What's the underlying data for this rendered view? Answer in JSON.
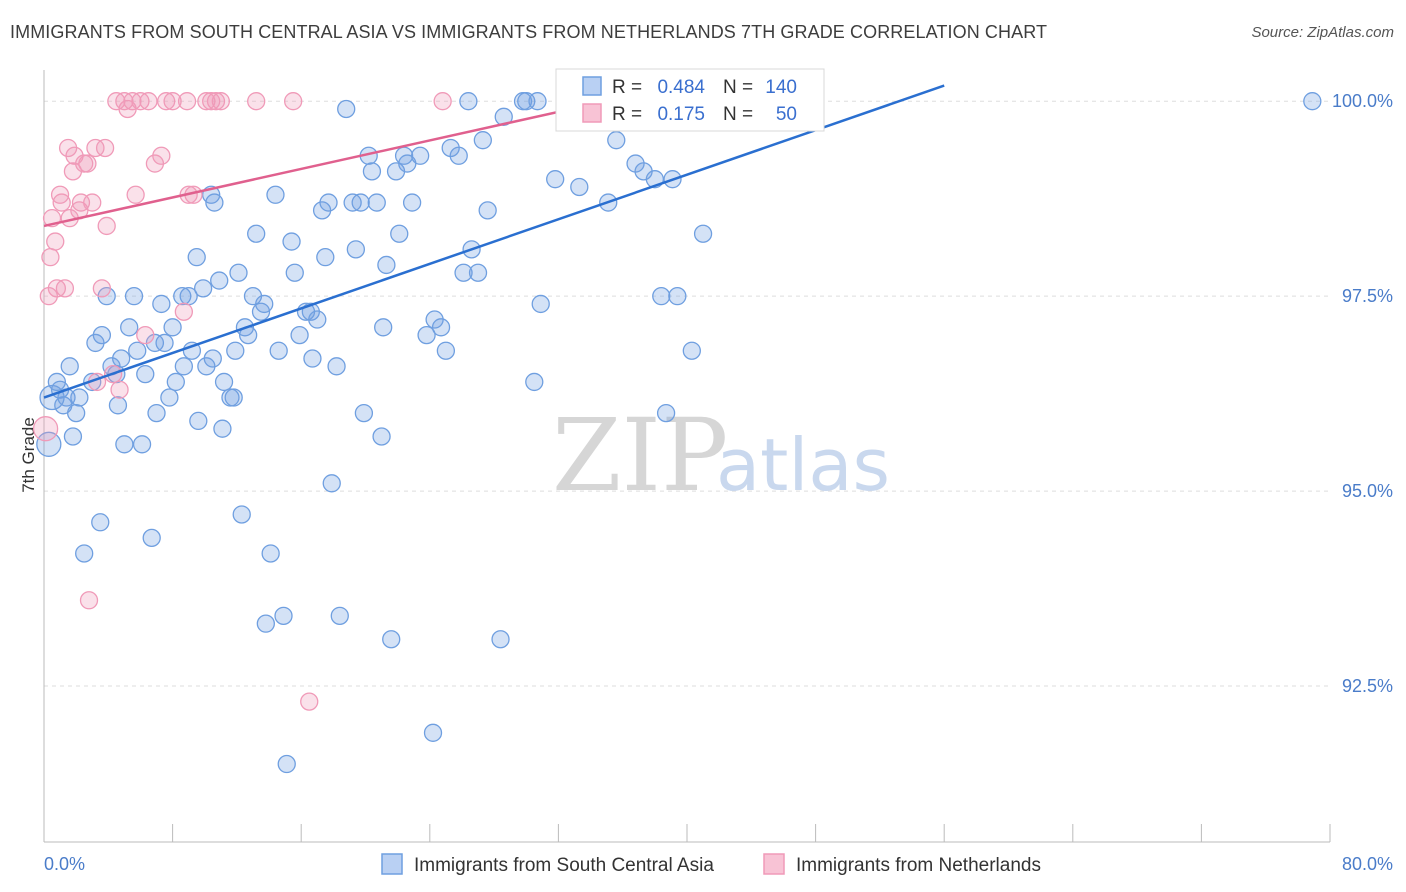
{
  "title": "IMMIGRANTS FROM SOUTH CENTRAL ASIA VS IMMIGRANTS FROM NETHERLANDS 7TH GRADE CORRELATION CHART",
  "source": "Source: ZipAtlas.com",
  "watermark": {
    "zip": "ZIP",
    "atlas": "atlas"
  },
  "colors": {
    "blue": "#6f9fe0",
    "pink": "#f09ab8",
    "blue_line": "#2a6fd0",
    "pink_line": "#e0608e",
    "tick": "#4a7cc9",
    "grid": "#dddddd"
  },
  "legend": {
    "rows": [
      {
        "r_label": "R =",
        "r_value": "0.484",
        "n_label": "N =",
        "n_value": "140"
      },
      {
        "r_label": "R =",
        "r_value": "0.175",
        "n_label": "N =",
        "n_value": "50"
      }
    ]
  },
  "chart_data": {
    "type": "scatter",
    "title": "IMMIGRANTS FROM SOUTH CENTRAL ASIA VS IMMIGRANTS FROM NETHERLANDS 7TH GRADE CORRELATION CHART",
    "xlabel": "",
    "ylabel": "7th Grade",
    "xlim": [
      0,
      80
    ],
    "ylim": [
      90.5,
      100.4
    ],
    "x_tick_labels": [
      "0.0%",
      "80.0%"
    ],
    "y_ticks": [
      92.5,
      95.0,
      97.5,
      100.0
    ],
    "y_tick_labels": [
      "92.5%",
      "95.0%",
      "97.5%",
      "100.0%"
    ],
    "grid": true,
    "legend_placement": "top-center",
    "series": [
      {
        "name": "Immigrants from South Central Asia",
        "r": 0.484,
        "n": 140,
        "trend": [
          [
            0,
            96.2
          ],
          [
            56,
            100.2
          ]
        ],
        "points": [
          [
            0.3,
            95.6
          ],
          [
            0.5,
            96.2
          ],
          [
            0.8,
            96.4
          ],
          [
            1,
            96.3
          ],
          [
            1.2,
            96.1
          ],
          [
            1.4,
            96.2
          ],
          [
            1.6,
            96.6
          ],
          [
            1.8,
            95.7
          ],
          [
            2,
            96
          ],
          [
            2.2,
            96.2
          ],
          [
            2.5,
            94.2
          ],
          [
            3,
            96.4
          ],
          [
            3.2,
            96.9
          ],
          [
            3.5,
            94.6
          ],
          [
            3.6,
            97
          ],
          [
            3.9,
            97.5
          ],
          [
            4.2,
            96.6
          ],
          [
            4.5,
            96.5
          ],
          [
            4.6,
            96.1
          ],
          [
            4.8,
            96.7
          ],
          [
            5,
            95.6
          ],
          [
            5.3,
            97.1
          ],
          [
            5.6,
            97.5
          ],
          [
            5.8,
            96.8
          ],
          [
            6.1,
            95.6
          ],
          [
            6.3,
            96.5
          ],
          [
            6.7,
            94.4
          ],
          [
            6.9,
            96.9
          ],
          [
            7,
            96
          ],
          [
            7.3,
            97.4
          ],
          [
            7.5,
            96.9
          ],
          [
            7.8,
            96.2
          ],
          [
            8,
            97.1
          ],
          [
            8.2,
            96.4
          ],
          [
            8.6,
            97.5
          ],
          [
            8.7,
            96.6
          ],
          [
            9,
            97.5
          ],
          [
            9.2,
            96.8
          ],
          [
            9.5,
            98
          ],
          [
            9.6,
            95.9
          ],
          [
            9.9,
            97.6
          ],
          [
            10.1,
            96.6
          ],
          [
            10.4,
            98.8
          ],
          [
            10.5,
            96.7
          ],
          [
            10.6,
            98.7
          ],
          [
            10.9,
            97.7
          ],
          [
            11.1,
            95.8
          ],
          [
            11.2,
            96.4
          ],
          [
            11.6,
            96.2
          ],
          [
            11.8,
            96.2
          ],
          [
            11.9,
            96.8
          ],
          [
            12.1,
            97.8
          ],
          [
            12.3,
            94.7
          ],
          [
            12.5,
            97.1
          ],
          [
            12.7,
            97
          ],
          [
            13,
            97.5
          ],
          [
            13.2,
            98.3
          ],
          [
            13.5,
            97.3
          ],
          [
            13.7,
            97.4
          ],
          [
            13.8,
            93.3
          ],
          [
            14.1,
            94.2
          ],
          [
            14.4,
            98.8
          ],
          [
            14.6,
            96.8
          ],
          [
            14.9,
            93.4
          ],
          [
            15.1,
            91.5
          ],
          [
            15.4,
            98.2
          ],
          [
            15.6,
            97.8
          ],
          [
            15.9,
            97
          ],
          [
            16.3,
            97.3
          ],
          [
            16.6,
            97.3
          ],
          [
            16.7,
            96.7
          ],
          [
            17,
            97.2
          ],
          [
            17.3,
            98.6
          ],
          [
            17.5,
            98
          ],
          [
            17.7,
            98.7
          ],
          [
            17.9,
            95.1
          ],
          [
            18.2,
            96.6
          ],
          [
            18.4,
            93.4
          ],
          [
            18.8,
            99.9
          ],
          [
            19.2,
            98.7
          ],
          [
            19.4,
            98.1
          ],
          [
            19.7,
            98.7
          ],
          [
            19.9,
            96
          ],
          [
            20.2,
            99.3
          ],
          [
            20.4,
            99.1
          ],
          [
            20.7,
            98.7
          ],
          [
            21,
            95.7
          ],
          [
            21.1,
            97.1
          ],
          [
            21.3,
            97.9
          ],
          [
            21.6,
            93.1
          ],
          [
            21.9,
            99.1
          ],
          [
            22.1,
            98.3
          ],
          [
            22.4,
            99.3
          ],
          [
            22.6,
            99.2
          ],
          [
            22.9,
            98.7
          ],
          [
            23.4,
            99.3
          ],
          [
            23.8,
            97
          ],
          [
            24.2,
            91.9
          ],
          [
            24.3,
            97.2
          ],
          [
            24.7,
            97.1
          ],
          [
            25,
            96.8
          ],
          [
            25.3,
            99.4
          ],
          [
            25.8,
            99.3
          ],
          [
            26.1,
            97.8
          ],
          [
            26.4,
            100
          ],
          [
            26.6,
            98.1
          ],
          [
            27,
            97.8
          ],
          [
            27.3,
            99.5
          ],
          [
            27.6,
            98.6
          ],
          [
            28.4,
            93.1
          ],
          [
            28.6,
            99.8
          ],
          [
            29.8,
            100
          ],
          [
            30,
            100
          ],
          [
            30.5,
            96.4
          ],
          [
            30.7,
            100
          ],
          [
            30.9,
            97.4
          ],
          [
            31.8,
            99
          ],
          [
            33.1,
            100
          ],
          [
            33.3,
            98.9
          ],
          [
            35.1,
            98.7
          ],
          [
            35.6,
            99.5
          ],
          [
            36.8,
            99.2
          ],
          [
            37.3,
            99.1
          ],
          [
            38,
            99
          ],
          [
            38.4,
            97.5
          ],
          [
            38.7,
            96
          ],
          [
            39.1,
            99
          ],
          [
            39.4,
            97.5
          ],
          [
            40.3,
            96.8
          ],
          [
            41,
            98.3
          ],
          [
            41.6,
            100
          ],
          [
            78.9,
            100
          ]
        ]
      },
      {
        "name": "Immigrants from Netherlands",
        "r": 0.175,
        "n": 50,
        "trend": [
          [
            0,
            98.4
          ],
          [
            35,
            100.0
          ]
        ],
        "points": [
          [
            0.1,
            95.8
          ],
          [
            0.3,
            97.5
          ],
          [
            0.4,
            98
          ],
          [
            0.5,
            98.5
          ],
          [
            0.7,
            98.2
          ],
          [
            0.8,
            97.6
          ],
          [
            1,
            98.8
          ],
          [
            1.1,
            98.7
          ],
          [
            1.3,
            97.6
          ],
          [
            1.5,
            99.4
          ],
          [
            1.6,
            98.5
          ],
          [
            1.8,
            99.1
          ],
          [
            1.9,
            99.3
          ],
          [
            2.2,
            98.6
          ],
          [
            2.3,
            98.7
          ],
          [
            2.5,
            99.2
          ],
          [
            2.7,
            99.2
          ],
          [
            2.8,
            93.6
          ],
          [
            3,
            98.7
          ],
          [
            3.2,
            99.4
          ],
          [
            3.3,
            96.4
          ],
          [
            3.6,
            97.6
          ],
          [
            3.8,
            99.4
          ],
          [
            3.9,
            98.4
          ],
          [
            4.3,
            96.5
          ],
          [
            4.5,
            100
          ],
          [
            4.7,
            96.3
          ],
          [
            5,
            100
          ],
          [
            5.2,
            99.9
          ],
          [
            5.5,
            100
          ],
          [
            5.7,
            98.8
          ],
          [
            6,
            100
          ],
          [
            6.3,
            97
          ],
          [
            6.5,
            100
          ],
          [
            6.9,
            99.2
          ],
          [
            7.3,
            99.3
          ],
          [
            7.6,
            100
          ],
          [
            8,
            100
          ],
          [
            8.7,
            97.3
          ],
          [
            8.9,
            100
          ],
          [
            9,
            98.8
          ],
          [
            9.3,
            98.8
          ],
          [
            10.1,
            100
          ],
          [
            10.4,
            100
          ],
          [
            10.7,
            100
          ],
          [
            11,
            100
          ],
          [
            13.2,
            100
          ],
          [
            15.5,
            100
          ],
          [
            16.5,
            92.3
          ],
          [
            24.8,
            100
          ]
        ]
      }
    ]
  },
  "bottom_legend": [
    "Immigrants from South Central Asia",
    "Immigrants from Netherlands"
  ]
}
